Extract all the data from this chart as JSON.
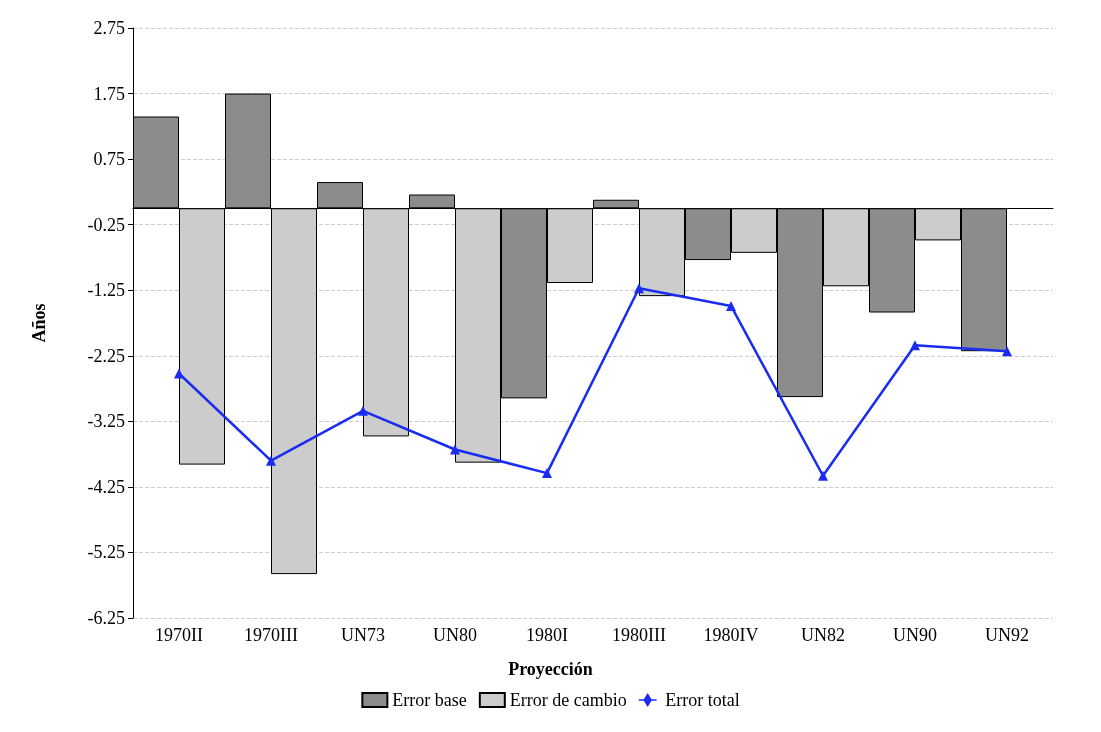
{
  "chart_data": {
    "type": "bar",
    "xlabel": "Proyección",
    "ylabel": "Años",
    "categories": [
      "1970II",
      "1970III",
      "UN73",
      "UN80",
      "1980I",
      "1980III",
      "1980IV",
      "UN82",
      "UN90",
      "UN92"
    ],
    "series": [
      {
        "name": "Error base",
        "color": "#8c8c8c",
        "values": [
          1.4,
          1.75,
          0.4,
          0.21,
          -2.9,
          0.13,
          -0.79,
          -2.88,
          -1.59,
          -2.18
        ]
      },
      {
        "name": "Error de cambio",
        "color": "#cccccc",
        "values": [
          -3.91,
          -5.58,
          -3.48,
          -3.88,
          -1.14,
          -1.34,
          -0.68,
          -1.19,
          -0.49,
          null
        ]
      },
      {
        "name": "Error total",
        "type": "line",
        "color": "#1a2cf0",
        "marker": "triangle",
        "values": [
          -2.52,
          -3.85,
          -3.09,
          -3.68,
          -4.04,
          -1.22,
          -1.49,
          -4.08,
          -2.09,
          -2.18
        ]
      }
    ],
    "ylim": [
      -6.25,
      2.75
    ],
    "yticks": [
      -6.25,
      -5.25,
      -4.25,
      -3.25,
      -2.25,
      -1.25,
      -0.25,
      0.75,
      1.75,
      2.75
    ],
    "grid": "y",
    "legend": "bottom"
  }
}
